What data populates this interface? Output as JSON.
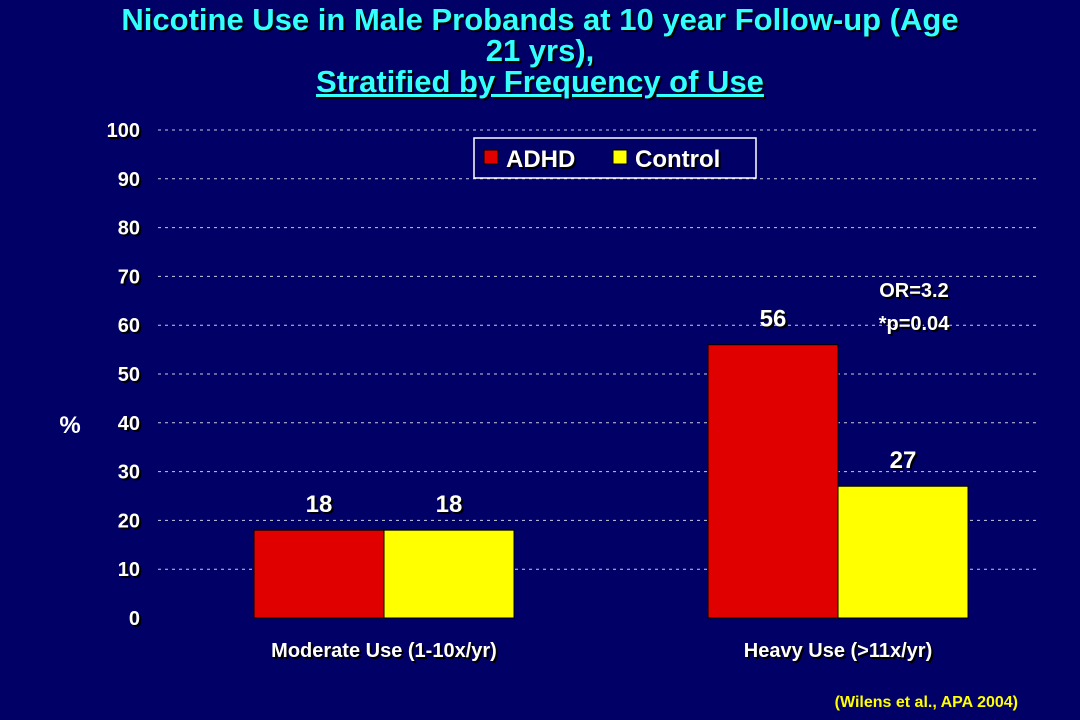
{
  "title": {
    "line1": "Nicotine Use in Male Probands at 10 year Follow-up (Age",
    "line2": "21 yrs),",
    "line3": "Stratified by Frequency of Use"
  },
  "colors": {
    "background": "#000066",
    "title": "#33ffff",
    "adhd": "#e00000",
    "control": "#ffff00",
    "text": "#ffffff"
  },
  "chart_data": {
    "type": "bar",
    "categories": [
      "Moderate Use (1-10x/yr)",
      "Heavy Use (>11x/yr)"
    ],
    "series": [
      {
        "name": "ADHD",
        "values": [
          18,
          56
        ]
      },
      {
        "name": "Control",
        "values": [
          18,
          27
        ]
      }
    ],
    "ylabel": "%",
    "ylim": [
      0,
      100
    ],
    "yticks": [
      0,
      10,
      20,
      30,
      40,
      50,
      60,
      70,
      80,
      90,
      100
    ],
    "grid": true,
    "legend": "top-center",
    "annotation": {
      "lines": [
        "OR=3.2",
        "*p=0.04"
      ],
      "category": "Heavy Use (>11x/yr)"
    }
  },
  "citation": "(Wilens et al., APA 2004)"
}
